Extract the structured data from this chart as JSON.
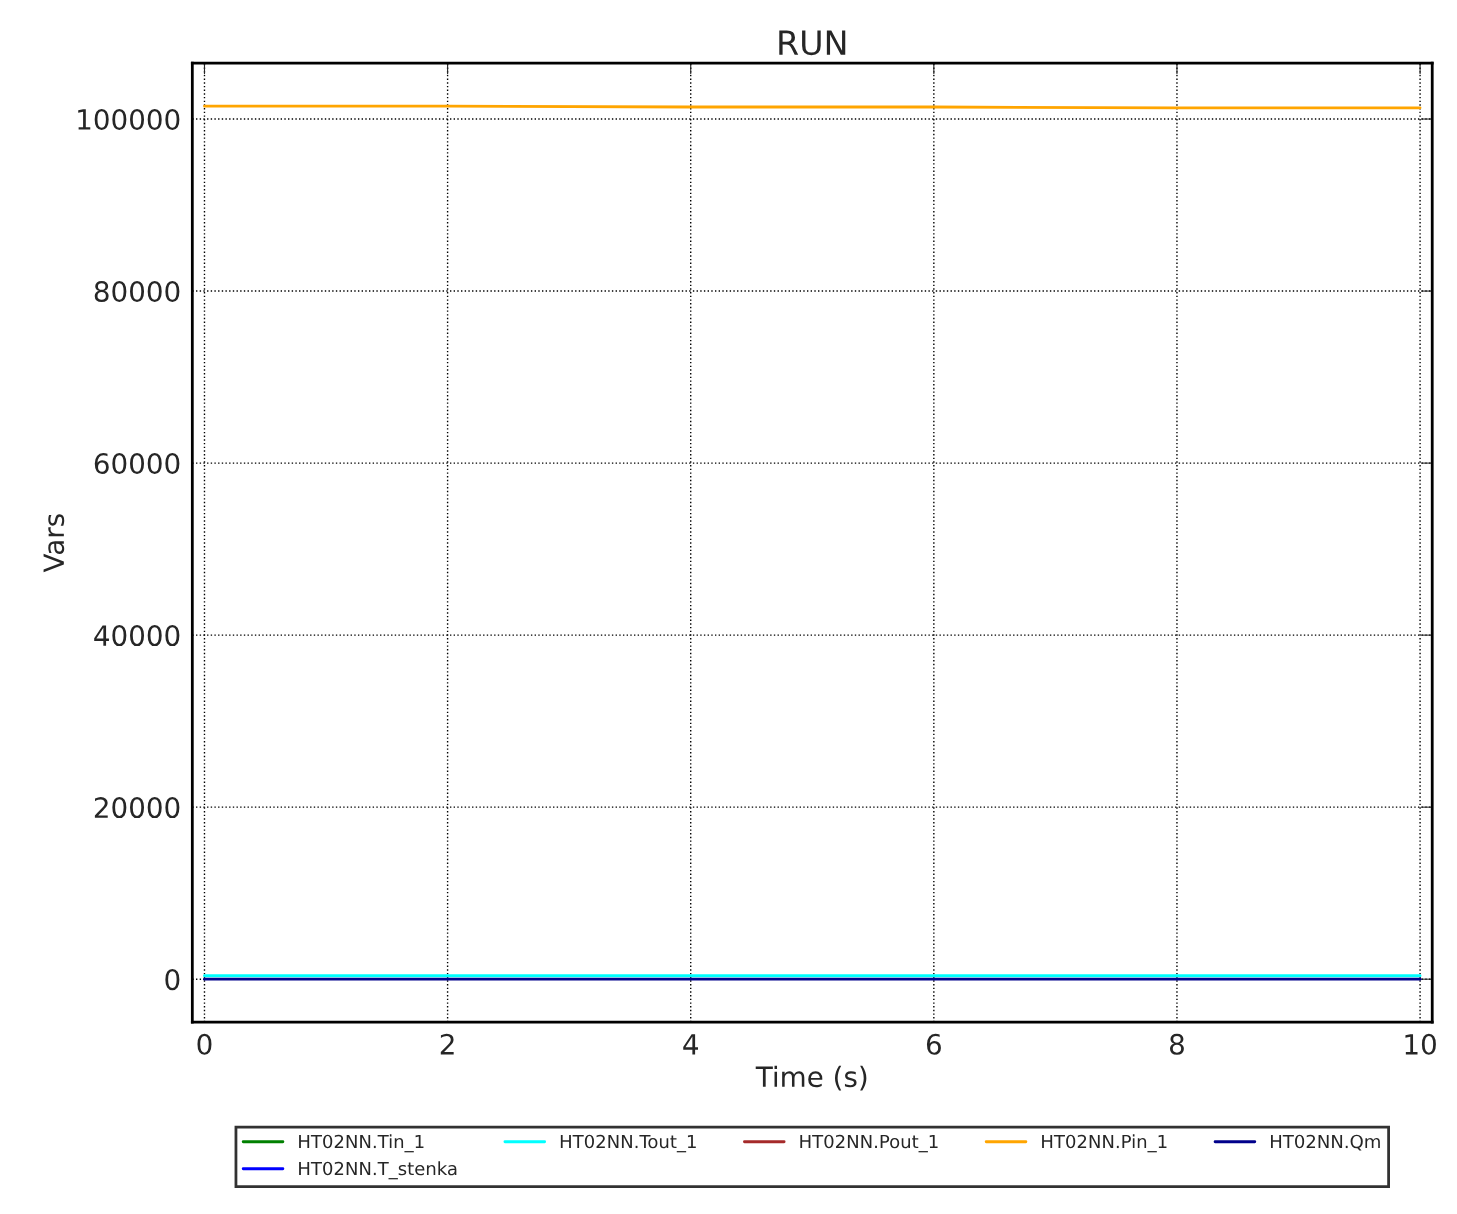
{
  "chart_data": {
    "type": "line",
    "title": "RUN",
    "xlabel": "Time (s)",
    "ylabel": "Vars",
    "x": [
      0,
      2,
      4,
      6,
      8,
      10
    ],
    "series": [
      {
        "name": "HT02NN.Tin_1",
        "color": "#008000",
        "values": [
          null,
          null,
          null,
          null,
          null,
          null
        ]
      },
      {
        "name": "HT02NN.T_stenka",
        "color": "#0000ff",
        "values": [
          null,
          null,
          null,
          null,
          null,
          null
        ]
      },
      {
        "name": "HT02NN.Tout_1",
        "color": "#00ffff",
        "values": [
          400,
          400,
          400,
          400,
          400,
          400
        ]
      },
      {
        "name": "HT02NN.Pout_1",
        "color": "#a52a2a",
        "values": [
          null,
          null,
          null,
          null,
          null,
          null
        ]
      },
      {
        "name": "HT02NN.Pin_1",
        "color": "#ffa500",
        "values": [
          101500,
          101500,
          101400,
          101400,
          101300,
          101300
        ]
      },
      {
        "name": "HT02NN.Qm",
        "color": "#00008b",
        "values": [
          0,
          0,
          0,
          0,
          0,
          0
        ]
      }
    ],
    "xlim": [
      -0.1,
      10.1
    ],
    "ylim": [
      -5000,
      106500
    ],
    "xticks": [
      0,
      2,
      4,
      6,
      8,
      10
    ],
    "yticks": [
      0,
      20000,
      40000,
      60000,
      80000,
      100000
    ],
    "grid": true,
    "legend": "bottom",
    "line_style": "solid",
    "marker": "none"
  }
}
